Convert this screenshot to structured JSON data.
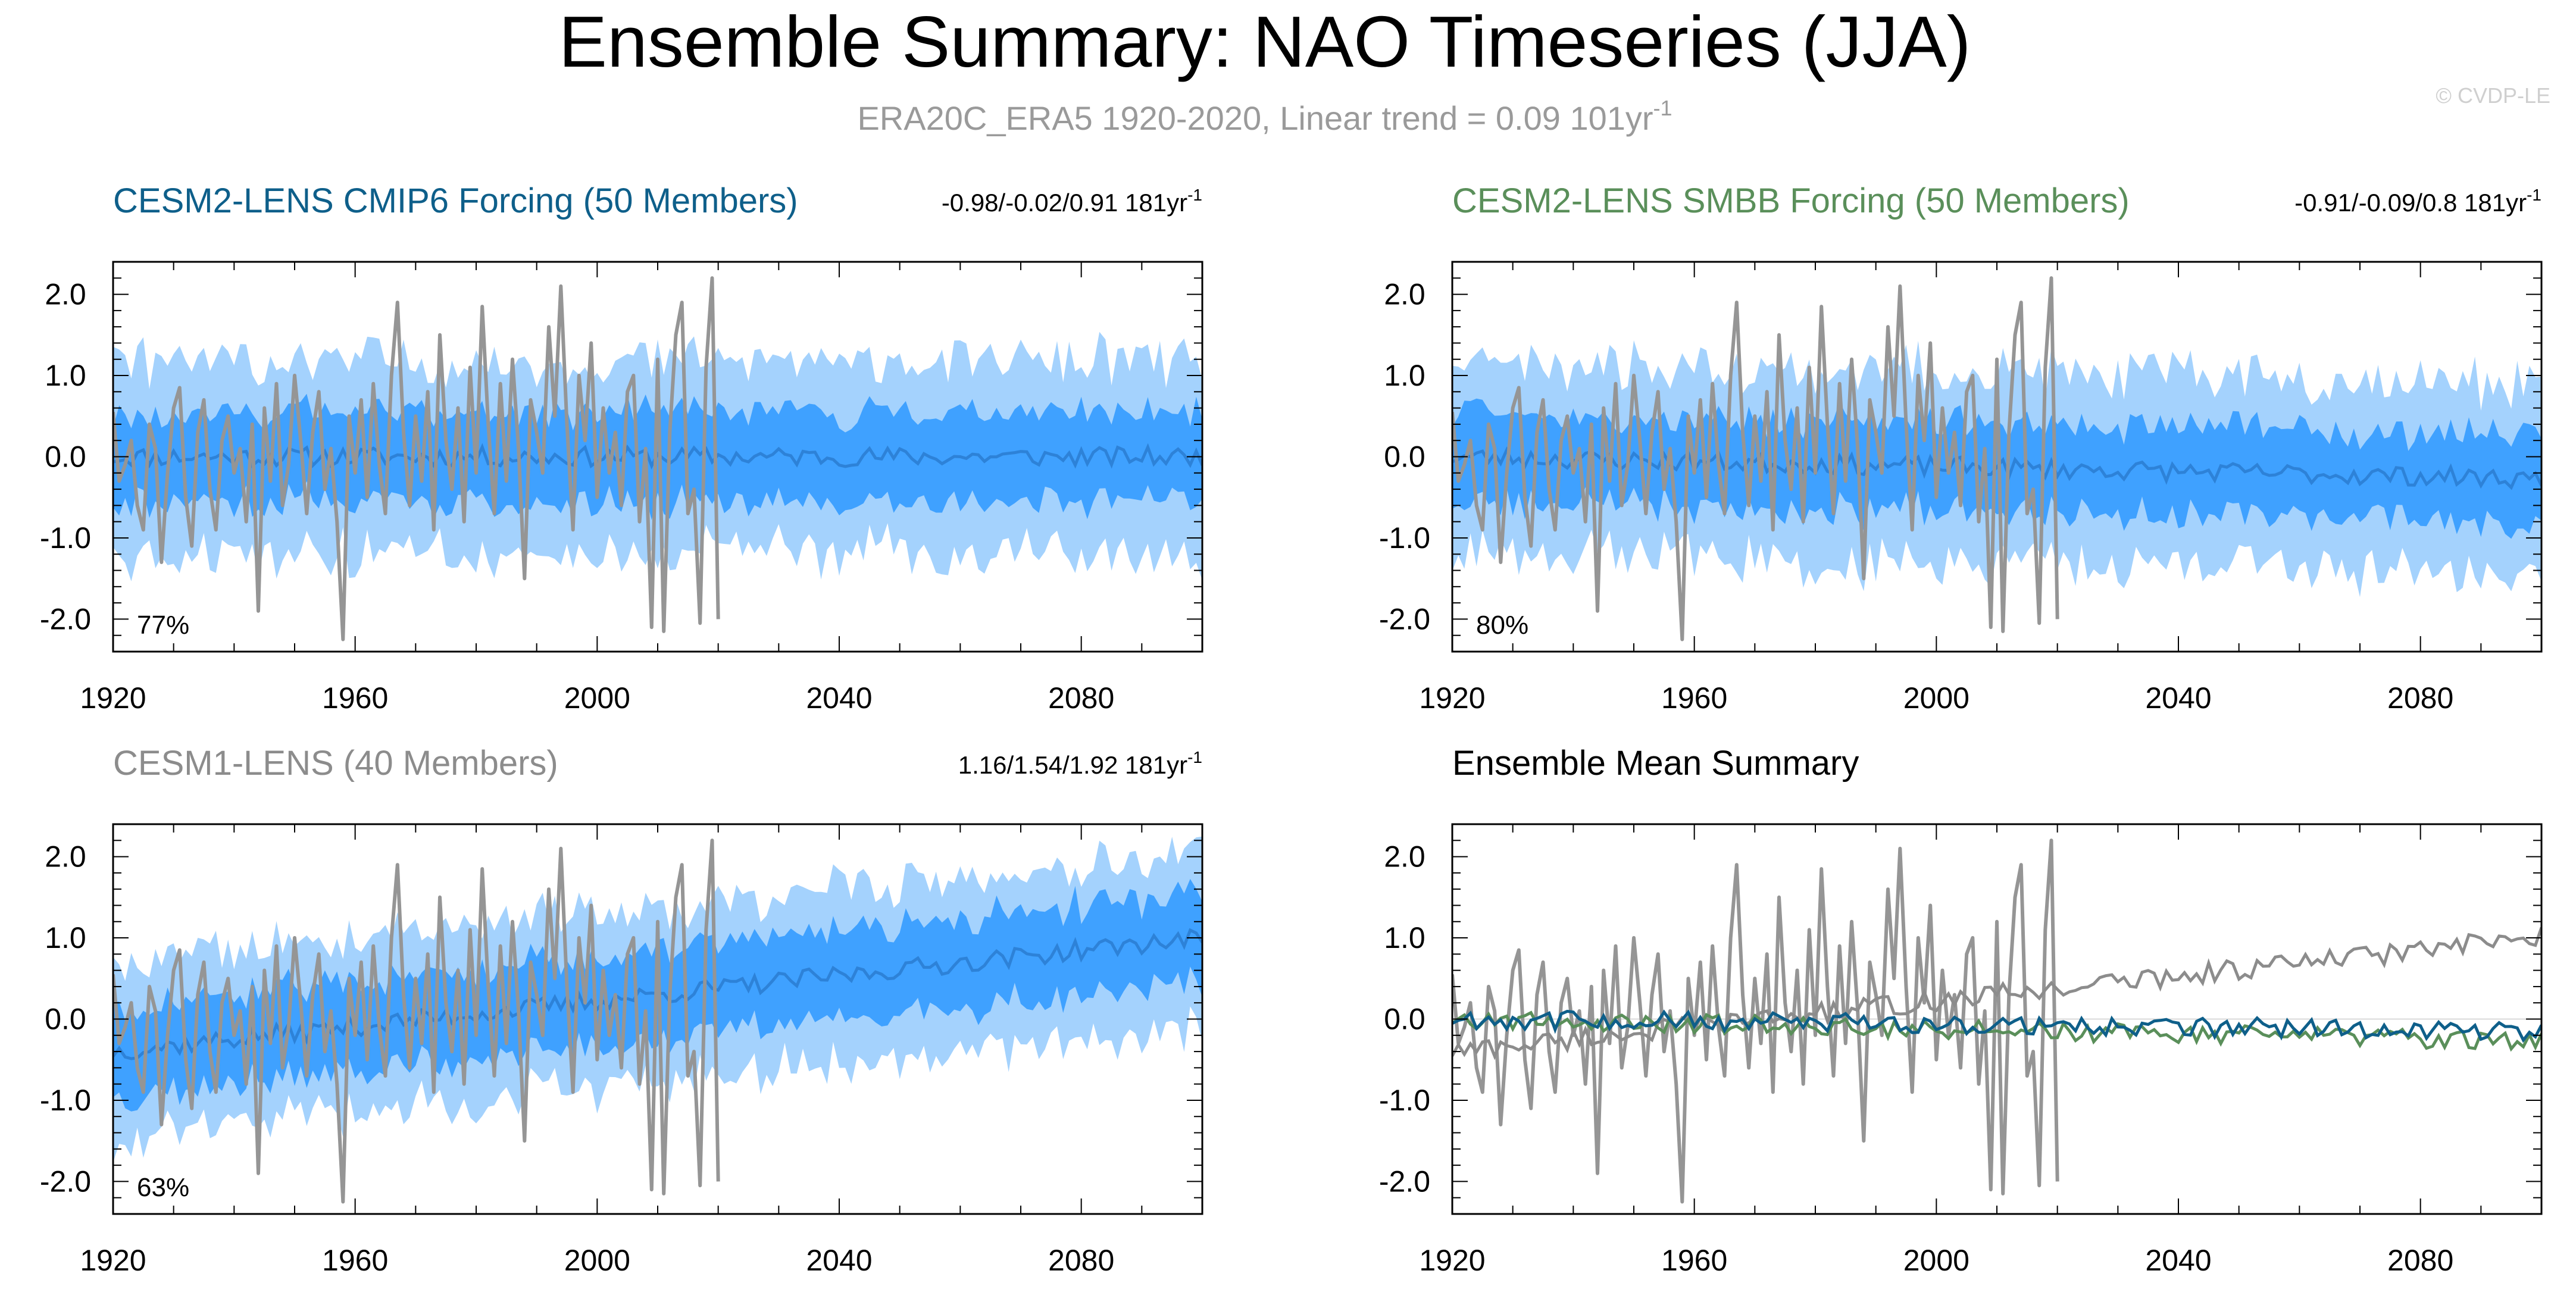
{
  "figure": {
    "title": "Ensemble Summary: NAO Timeseries (JJA)",
    "subtitle": "ERA20C_ERA5 1920-2020, Linear trend = 0.09 101yr",
    "subtitle_sup": "-1",
    "watermark": "© CVDP-LE"
  },
  "colors": {
    "outer_band": "#a4d2fd",
    "inner_band": "#3fa1ff",
    "ens_mean": "#2d82d8",
    "obs": "#959595",
    "cmip6": "#0e5f8a",
    "smbb": "#5a8f5a",
    "cesm1": "#8c8c8c"
  },
  "chart_data": [
    {
      "type": "area",
      "title": "CESM2-LENS CMIP6 Forcing (50 Members)",
      "stats": "-0.98/-0.02/0.91 181yr",
      "stats_sup": "-1",
      "percent": "77%",
      "xlim": [
        1920,
        2100
      ],
      "ylim": [
        -2.4,
        2.4
      ],
      "xticks": [
        1920,
        1960,
        2000,
        2040,
        2080
      ],
      "yticks": [
        2.0,
        1.0,
        0.0,
        -1.0,
        -2.0
      ],
      "ytick_labels": [
        "2.0",
        "1.0",
        "0.0",
        "-1.0",
        "-2.0"
      ],
      "trend": 0.0,
      "mean_amp": 0.12,
      "inner_halfwidth": 0.55,
      "outer_halfwidth": 1.15,
      "seed": 11,
      "show_obs": true
    },
    {
      "type": "area",
      "title": "CESM2-LENS SMBB Forcing (50 Members)",
      "stats": "-0.91/-0.09/0.8 181yr",
      "stats_sup": "-1",
      "percent": "80%",
      "xlim": [
        1920,
        2100
      ],
      "ylim": [
        -2.4,
        2.4
      ],
      "xticks": [
        1920,
        1960,
        2000,
        2040,
        2080
      ],
      "yticks": [
        2.0,
        1.0,
        0.0,
        -1.0,
        -2.0
      ],
      "ytick_labels": [
        "2.0",
        "1.0",
        "0.0",
        "-1.0",
        "-2.0"
      ],
      "trend": -0.0015,
      "mean_amp": 0.12,
      "inner_halfwidth": 0.55,
      "outer_halfwidth": 1.15,
      "seed": 23,
      "show_obs": true
    },
    {
      "type": "area",
      "title": "CESM1-LENS (40 Members)",
      "stats": "1.16/1.54/1.92 181yr",
      "stats_sup": "-1",
      "percent": "63%",
      "xlim": [
        1920,
        2100
      ],
      "ylim": [
        -2.4,
        2.4
      ],
      "xticks": [
        1920,
        1960,
        2000,
        2040,
        2080
      ],
      "yticks": [
        2.0,
        1.0,
        0.0,
        -1.0,
        -2.0
      ],
      "ytick_labels": [
        "2.0",
        "1.0",
        "0.0",
        "-1.0",
        "-2.0"
      ],
      "trend": 0.0078,
      "start_value": -0.4,
      "mean_amp": 0.12,
      "inner_halfwidth": 0.55,
      "outer_halfwidth": 1.05,
      "seed": 37,
      "show_obs": true
    },
    {
      "type": "line",
      "title": "Ensemble Mean Summary",
      "xlim": [
        1920,
        2100
      ],
      "ylim": [
        -2.4,
        2.4
      ],
      "xticks": [
        1920,
        1960,
        2000,
        2040,
        2080
      ],
      "yticks": [
        2.0,
        1.0,
        0.0,
        -1.0,
        -2.0
      ],
      "ytick_labels": [
        "2.0",
        "1.0",
        "0.0",
        "-1.0",
        "-2.0"
      ],
      "series": [
        {
          "name": "ERA20C_ERA5",
          "color": "#959595",
          "kind": "obs"
        },
        {
          "name": "CESM1-LENS",
          "color": "#8c8c8c",
          "start": -0.4,
          "trend": 0.0078,
          "amp": 0.13,
          "seed": 37
        },
        {
          "name": "CESM2-LENS SMBB Forcing",
          "color": "#5a8f5a",
          "start": 0.0,
          "trend": -0.0015,
          "amp": 0.12,
          "seed": 23
        },
        {
          "name": "CESM2-LENS CMIP6 Forcing",
          "color": "#0e5f8a",
          "start": 0.0,
          "trend": -0.0008,
          "amp": 0.12,
          "seed": 11
        }
      ]
    }
  ],
  "obs_series": {
    "name": "ERA20C_ERA5",
    "years": [
      1920,
      2020
    ],
    "values": [
      0.55,
      -0.3,
      -0.1,
      0.2,
      -0.6,
      -0.9,
      0.4,
      0.1,
      -1.3,
      -0.2,
      0.6,
      0.85,
      -0.5,
      -1.1,
      0.3,
      0.7,
      -0.4,
      -0.9,
      0.2,
      0.5,
      -0.2,
      0.1,
      -0.8,
      0.4,
      -1.9,
      0.6,
      -0.3,
      0.9,
      -0.6,
      -0.1,
      1.0,
      0.2,
      -0.7,
      0.3,
      0.8,
      -0.4,
      0.1,
      -0.8,
      -2.25,
      0.5,
      -0.2,
      0.7,
      -0.5,
      0.9,
      -0.1,
      -0.7,
      1.0,
      1.9,
      0.3,
      -0.6,
      0.5,
      -0.3,
      0.8,
      -0.9,
      1.5,
      0.2,
      -0.4,
      0.6,
      -0.8,
      1.1,
      -0.2,
      1.85,
      0.4,
      -0.7,
      0.9,
      -0.3,
      1.2,
      0.1,
      -1.5,
      0.7,
      0.3,
      -0.2,
      1.6,
      0.5,
      2.1,
      0.4,
      -0.9,
      1.0,
      0.2,
      1.4,
      -0.5,
      0.6,
      -0.2,
      0.3,
      -0.6,
      0.8,
      1.0,
      -0.8,
      0.1,
      -2.1,
      1.2,
      -2.15,
      0.3,
      1.5,
      1.9,
      -0.7,
      -0.4,
      -2.05,
      1.1,
      2.2,
      -2.0
    ]
  }
}
